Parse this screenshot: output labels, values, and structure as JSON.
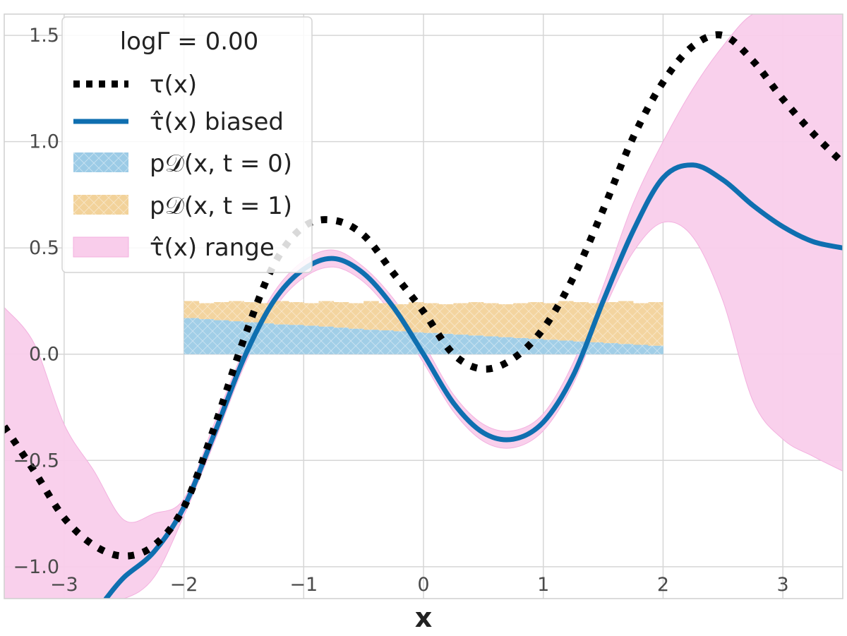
{
  "chart_data": {
    "type": "line",
    "title": "",
    "xlabel": "x",
    "ylabel": "",
    "xlim": [
      -3.5,
      3.5
    ],
    "ylim": [
      -1.15,
      1.6
    ],
    "grid": true,
    "legend_placement": "top-left",
    "xticks": [
      -3,
      -2,
      -1,
      0,
      1,
      2,
      3
    ],
    "yticks": [
      -1.0,
      -0.5,
      0.0,
      0.5,
      1.0,
      1.5
    ],
    "xtick_labels": [
      "−3",
      "−2",
      "−1",
      "0",
      "1",
      "2",
      "3"
    ],
    "ytick_labels": [
      "−1.0",
      "−0.5",
      "0.0",
      "0.5",
      "1.0",
      "1.5"
    ],
    "legend": {
      "title": "logΓ = 0.00",
      "entries": [
        {
          "label": "τ(x)",
          "style": "dotted-line",
          "color": "#000000"
        },
        {
          "label": "τ̂(x) biased",
          "style": "line",
          "color": "#0f6fb0"
        },
        {
          "label": "p𝒟(x, t = 0)",
          "style": "hatched-patch",
          "color": "#9ccbe6"
        },
        {
          "label": "p𝒟(x, t = 1)",
          "style": "hatched-patch",
          "color": "#f2d29a"
        },
        {
          "label": "τ̂(x) range",
          "style": "patch",
          "color": "#f9cdeb"
        }
      ]
    },
    "series": [
      {
        "name": "τ(x)",
        "x": [
          -3.5,
          -3.25,
          -3.0,
          -2.75,
          -2.5,
          -2.25,
          -2.0,
          -1.75,
          -1.5,
          -1.25,
          -1.0,
          -0.75,
          -0.5,
          -0.25,
          0.0,
          0.25,
          0.5,
          0.75,
          1.0,
          1.25,
          1.5,
          1.75,
          2.0,
          2.25,
          2.5,
          2.75,
          3.0,
          3.25,
          3.5
        ],
        "y": [
          -0.34,
          -0.55,
          -0.77,
          -0.9,
          -0.95,
          -0.9,
          -0.72,
          -0.35,
          0.07,
          0.42,
          0.6,
          0.63,
          0.56,
          0.38,
          0.2,
          0.0,
          -0.07,
          -0.02,
          0.12,
          0.36,
          0.68,
          1.02,
          1.28,
          1.45,
          1.5,
          1.38,
          1.2,
          1.04,
          0.9
        ]
      },
      {
        "name": "τ̂(x) biased",
        "x": [
          -2.65,
          -2.5,
          -2.25,
          -2.0,
          -1.75,
          -1.5,
          -1.25,
          -1.0,
          -0.75,
          -0.5,
          -0.25,
          0.0,
          0.25,
          0.5,
          0.75,
          1.0,
          1.25,
          1.5,
          1.75,
          2.0,
          2.25,
          2.5,
          2.75,
          3.0,
          3.25,
          3.5
        ],
        "y": [
          -1.15,
          -1.05,
          -0.93,
          -0.72,
          -0.38,
          -0.02,
          0.25,
          0.4,
          0.45,
          0.38,
          0.22,
          0.0,
          -0.23,
          -0.37,
          -0.4,
          -0.32,
          -0.1,
          0.25,
          0.58,
          0.83,
          0.89,
          0.82,
          0.7,
          0.6,
          0.53,
          0.5
        ]
      }
    ],
    "range_band": {
      "name": "τ̂(x) range",
      "x": [
        -3.5,
        -3.25,
        -3.0,
        -2.75,
        -2.5,
        -2.25,
        -2.0,
        -1.75,
        -1.5,
        -1.25,
        -1.0,
        -0.75,
        -0.5,
        -0.25,
        0.0,
        0.25,
        0.5,
        0.75,
        1.0,
        1.25,
        1.5,
        1.75,
        2.0,
        2.25,
        2.5,
        2.75,
        3.0,
        3.25,
        3.5
      ],
      "upper": [
        0.22,
        0.05,
        -0.33,
        -0.55,
        -0.78,
        -0.75,
        -0.68,
        -0.33,
        0.02,
        0.29,
        0.44,
        0.49,
        0.41,
        0.26,
        0.05,
        -0.19,
        -0.33,
        -0.36,
        -0.28,
        -0.04,
        0.32,
        0.71,
        1.0,
        1.25,
        1.45,
        1.6,
        1.6,
        1.6,
        1.6
      ],
      "lower": [
        -1.15,
        -1.15,
        -1.15,
        -1.15,
        -1.15,
        -1.05,
        -0.76,
        -0.42,
        -0.06,
        0.21,
        0.36,
        0.41,
        0.34,
        0.18,
        -0.04,
        -0.27,
        -0.41,
        -0.44,
        -0.36,
        -0.14,
        0.2,
        0.48,
        0.62,
        0.55,
        0.25,
        -0.22,
        -0.4,
        -0.48,
        -0.55
      ]
    },
    "histogram": {
      "x_start": -2.0,
      "x_end": 2.0,
      "t0_heights": [
        0.17,
        0.165,
        0.16,
        0.155,
        0.15,
        0.145,
        0.14,
        0.138,
        0.134,
        0.13,
        0.125,
        0.12,
        0.115,
        0.112,
        0.108,
        0.103,
        0.1,
        0.096,
        0.092,
        0.088,
        0.084,
        0.08,
        0.076,
        0.072,
        0.068,
        0.064,
        0.06,
        0.056,
        0.052,
        0.048,
        0.044,
        0.04
      ],
      "totals": [
        0.25,
        0.24,
        0.245,
        0.25,
        0.245,
        0.24,
        0.25,
        0.245,
        0.24,
        0.25,
        0.245,
        0.24,
        0.25,
        0.24,
        0.235,
        0.245,
        0.24,
        0.235,
        0.24,
        0.245,
        0.24,
        0.235,
        0.24,
        0.245,
        0.24,
        0.25,
        0.245,
        0.24,
        0.245,
        0.25,
        0.24,
        0.245
      ],
      "t0_color": "#9ccbe6",
      "t1_color": "#f2d29a"
    },
    "colors": {
      "true_effect": "#000000",
      "biased": "#0f6fb0",
      "range": "#f9cdeb",
      "grid": "#d6d6d6"
    }
  }
}
